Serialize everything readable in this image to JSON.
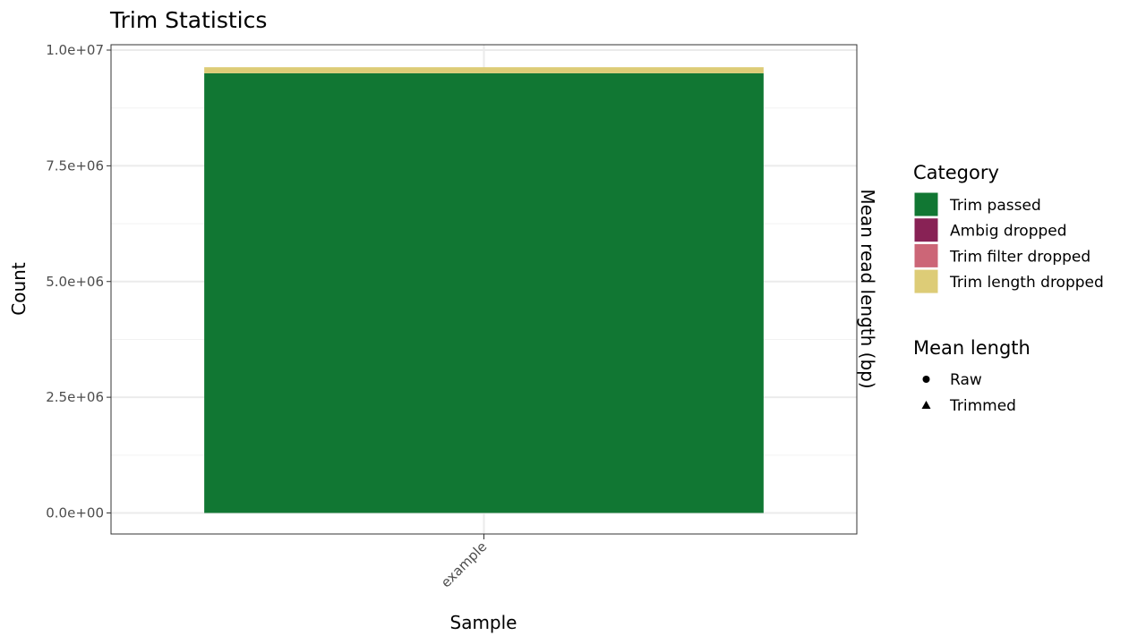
{
  "chart_data": {
    "type": "bar",
    "stacked": true,
    "title": "Trim Statistics",
    "xlabel": "Sample",
    "ylabel": "Count",
    "y2label": "Mean read length (bp)",
    "categories": [
      "example"
    ],
    "ylim": [
      0,
      10000000
    ],
    "yticks": [
      {
        "value": 0,
        "label": "0.0e+00"
      },
      {
        "value": 2500000,
        "label": "2.5e+06"
      },
      {
        "value": 5000000,
        "label": "5.0e+06"
      },
      {
        "value": 7500000,
        "label": "7.5e+06"
      },
      {
        "value": 10000000,
        "label": "1.0e+07"
      }
    ],
    "series": [
      {
        "name": "Trim passed",
        "color": "#117733",
        "values": [
          9500000
        ]
      },
      {
        "name": "Ambig dropped",
        "color": "#882255",
        "values": [
          0
        ]
      },
      {
        "name": "Trim filter dropped",
        "color": "#CC6677",
        "values": [
          0
        ]
      },
      {
        "name": "Trim length dropped",
        "color": "#DDCC77",
        "values": [
          130000
        ]
      }
    ],
    "legend": {
      "placement": "right",
      "fill_title": "Category",
      "shape_title": "Mean length",
      "shape_items": [
        {
          "label": "Raw",
          "shape": "circle"
        },
        {
          "label": "Trimmed",
          "shape": "triangle"
        }
      ]
    },
    "grid": true
  }
}
